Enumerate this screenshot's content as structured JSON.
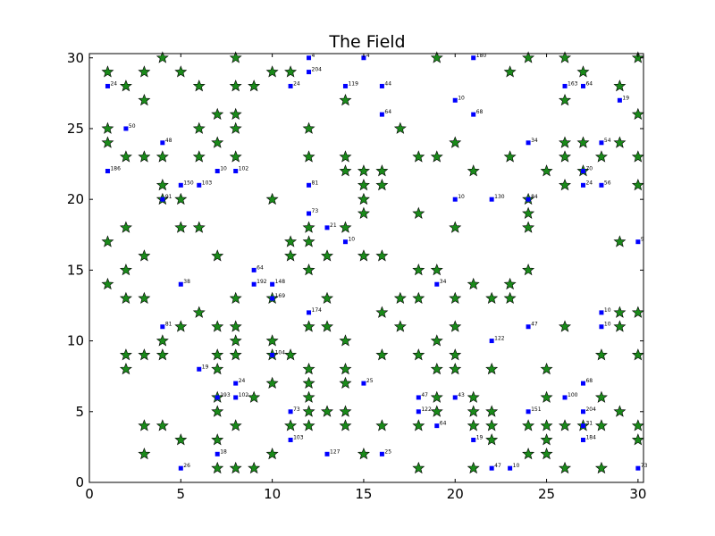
{
  "chart_data": {
    "type": "scatter",
    "title": "The Field",
    "xlabel": "",
    "ylabel": "",
    "xlim": [
      0,
      30.3
    ],
    "ylim": [
      0,
      30.3
    ],
    "xticks": [
      0,
      5,
      10,
      15,
      20,
      25,
      30
    ],
    "yticks": [
      0,
      5,
      10,
      15,
      20,
      25,
      30
    ],
    "grid": false,
    "colors": {
      "star_fill": "#1a8a1a",
      "star_edge": "#000000",
      "square": "#0000ff"
    },
    "series": [
      {
        "marker": "star",
        "points": [
          {
            "x": 1,
            "y": 29
          },
          {
            "x": 3,
            "y": 29
          },
          {
            "x": 4,
            "y": 30
          },
          {
            "x": 5,
            "y": 29
          },
          {
            "x": 8,
            "y": 30
          },
          {
            "x": 10,
            "y": 29
          },
          {
            "x": 11,
            "y": 29
          },
          {
            "x": 2,
            "y": 28
          },
          {
            "x": 6,
            "y": 28
          },
          {
            "x": 8,
            "y": 28
          },
          {
            "x": 9,
            "y": 28
          },
          {
            "x": 3,
            "y": 27
          },
          {
            "x": 14,
            "y": 27
          },
          {
            "x": 19,
            "y": 30
          },
          {
            "x": 23,
            "y": 29
          },
          {
            "x": 24,
            "y": 30
          },
          {
            "x": 26,
            "y": 30
          },
          {
            "x": 27,
            "y": 29
          },
          {
            "x": 29,
            "y": 28
          },
          {
            "x": 30,
            "y": 30
          },
          {
            "x": 26,
            "y": 27
          },
          {
            "x": 30,
            "y": 26
          },
          {
            "x": 7,
            "y": 26
          },
          {
            "x": 8,
            "y": 26
          },
          {
            "x": 1,
            "y": 25
          },
          {
            "x": 6,
            "y": 25
          },
          {
            "x": 8,
            "y": 25
          },
          {
            "x": 12,
            "y": 25
          },
          {
            "x": 17,
            "y": 25
          },
          {
            "x": 1,
            "y": 24
          },
          {
            "x": 7,
            "y": 24
          },
          {
            "x": 20,
            "y": 24
          },
          {
            "x": 26,
            "y": 24
          },
          {
            "x": 27,
            "y": 24
          },
          {
            "x": 29,
            "y": 24
          },
          {
            "x": 2,
            "y": 23
          },
          {
            "x": 3,
            "y": 23
          },
          {
            "x": 4,
            "y": 23
          },
          {
            "x": 6,
            "y": 23
          },
          {
            "x": 8,
            "y": 23
          },
          {
            "x": 12,
            "y": 23
          },
          {
            "x": 14,
            "y": 23
          },
          {
            "x": 18,
            "y": 23
          },
          {
            "x": 19,
            "y": 23
          },
          {
            "x": 23,
            "y": 23
          },
          {
            "x": 26,
            "y": 23
          },
          {
            "x": 28,
            "y": 23
          },
          {
            "x": 30,
            "y": 23
          },
          {
            "x": 14,
            "y": 22
          },
          {
            "x": 15,
            "y": 22
          },
          {
            "x": 16,
            "y": 22
          },
          {
            "x": 21,
            "y": 22
          },
          {
            "x": 25,
            "y": 22
          },
          {
            "x": 27,
            "y": 22
          },
          {
            "x": 4,
            "y": 21
          },
          {
            "x": 15,
            "y": 21
          },
          {
            "x": 16,
            "y": 21
          },
          {
            "x": 26,
            "y": 21
          },
          {
            "x": 30,
            "y": 21
          },
          {
            "x": 4,
            "y": 20
          },
          {
            "x": 5,
            "y": 20
          },
          {
            "x": 10,
            "y": 20
          },
          {
            "x": 15,
            "y": 20
          },
          {
            "x": 24,
            "y": 20
          },
          {
            "x": 15,
            "y": 19
          },
          {
            "x": 18,
            "y": 19
          },
          {
            "x": 24,
            "y": 19
          },
          {
            "x": 2,
            "y": 18
          },
          {
            "x": 5,
            "y": 18
          },
          {
            "x": 6,
            "y": 18
          },
          {
            "x": 12,
            "y": 18
          },
          {
            "x": 14,
            "y": 18
          },
          {
            "x": 20,
            "y": 18
          },
          {
            "x": 24,
            "y": 18
          },
          {
            "x": 1,
            "y": 17
          },
          {
            "x": 11,
            "y": 17
          },
          {
            "x": 12,
            "y": 17
          },
          {
            "x": 29,
            "y": 17
          },
          {
            "x": 3,
            "y": 16
          },
          {
            "x": 7,
            "y": 16
          },
          {
            "x": 11,
            "y": 16
          },
          {
            "x": 13,
            "y": 16
          },
          {
            "x": 15,
            "y": 16
          },
          {
            "x": 16,
            "y": 16
          },
          {
            "x": 2,
            "y": 15
          },
          {
            "x": 12,
            "y": 15
          },
          {
            "x": 18,
            "y": 15
          },
          {
            "x": 19,
            "y": 15
          },
          {
            "x": 24,
            "y": 15
          },
          {
            "x": 1,
            "y": 14
          },
          {
            "x": 21,
            "y": 14
          },
          {
            "x": 23,
            "y": 14
          },
          {
            "x": 2,
            "y": 13
          },
          {
            "x": 3,
            "y": 13
          },
          {
            "x": 8,
            "y": 13
          },
          {
            "x": 10,
            "y": 13
          },
          {
            "x": 13,
            "y": 13
          },
          {
            "x": 17,
            "y": 13
          },
          {
            "x": 18,
            "y": 13
          },
          {
            "x": 20,
            "y": 13
          },
          {
            "x": 22,
            "y": 13
          },
          {
            "x": 23,
            "y": 13
          },
          {
            "x": 6,
            "y": 12
          },
          {
            "x": 16,
            "y": 12
          },
          {
            "x": 29,
            "y": 12
          },
          {
            "x": 30,
            "y": 12
          },
          {
            "x": 5,
            "y": 11
          },
          {
            "x": 7,
            "y": 11
          },
          {
            "x": 8,
            "y": 11
          },
          {
            "x": 12,
            "y": 11
          },
          {
            "x": 13,
            "y": 11
          },
          {
            "x": 17,
            "y": 11
          },
          {
            "x": 20,
            "y": 11
          },
          {
            "x": 26,
            "y": 11
          },
          {
            "x": 29,
            "y": 11
          },
          {
            "x": 4,
            "y": 10
          },
          {
            "x": 8,
            "y": 10
          },
          {
            "x": 10,
            "y": 10
          },
          {
            "x": 14,
            "y": 10
          },
          {
            "x": 19,
            "y": 10
          },
          {
            "x": 2,
            "y": 9
          },
          {
            "x": 3,
            "y": 9
          },
          {
            "x": 4,
            "y": 9
          },
          {
            "x": 7,
            "y": 9
          },
          {
            "x": 8,
            "y": 9
          },
          {
            "x": 10,
            "y": 9
          },
          {
            "x": 11,
            "y": 9
          },
          {
            "x": 16,
            "y": 9
          },
          {
            "x": 18,
            "y": 9
          },
          {
            "x": 20,
            "y": 9
          },
          {
            "x": 28,
            "y": 9
          },
          {
            "x": 30,
            "y": 9
          },
          {
            "x": 2,
            "y": 8
          },
          {
            "x": 7,
            "y": 8
          },
          {
            "x": 12,
            "y": 8
          },
          {
            "x": 14,
            "y": 8
          },
          {
            "x": 19,
            "y": 8
          },
          {
            "x": 20,
            "y": 8
          },
          {
            "x": 22,
            "y": 8
          },
          {
            "x": 25,
            "y": 8
          },
          {
            "x": 10,
            "y": 7
          },
          {
            "x": 12,
            "y": 7
          },
          {
            "x": 14,
            "y": 7
          },
          {
            "x": 7,
            "y": 6
          },
          {
            "x": 9,
            "y": 6
          },
          {
            "x": 12,
            "y": 6
          },
          {
            "x": 19,
            "y": 6
          },
          {
            "x": 21,
            "y": 6
          },
          {
            "x": 25,
            "y": 6
          },
          {
            "x": 28,
            "y": 6
          },
          {
            "x": 7,
            "y": 5
          },
          {
            "x": 12,
            "y": 5
          },
          {
            "x": 13,
            "y": 5
          },
          {
            "x": 14,
            "y": 5
          },
          {
            "x": 19,
            "y": 5
          },
          {
            "x": 21,
            "y": 5
          },
          {
            "x": 22,
            "y": 5
          },
          {
            "x": 29,
            "y": 5
          },
          {
            "x": 3,
            "y": 4
          },
          {
            "x": 4,
            "y": 4
          },
          {
            "x": 8,
            "y": 4
          },
          {
            "x": 11,
            "y": 4
          },
          {
            "x": 12,
            "y": 4
          },
          {
            "x": 14,
            "y": 4
          },
          {
            "x": 16,
            "y": 4
          },
          {
            "x": 18,
            "y": 4
          },
          {
            "x": 21,
            "y": 4
          },
          {
            "x": 22,
            "y": 4
          },
          {
            "x": 24,
            "y": 4
          },
          {
            "x": 25,
            "y": 4
          },
          {
            "x": 26,
            "y": 4
          },
          {
            "x": 27,
            "y": 4
          },
          {
            "x": 28,
            "y": 4
          },
          {
            "x": 30,
            "y": 4
          },
          {
            "x": 5,
            "y": 3
          },
          {
            "x": 7,
            "y": 3
          },
          {
            "x": 22,
            "y": 3
          },
          {
            "x": 25,
            "y": 3
          },
          {
            "x": 30,
            "y": 3
          },
          {
            "x": 3,
            "y": 2
          },
          {
            "x": 10,
            "y": 2
          },
          {
            "x": 15,
            "y": 2
          },
          {
            "x": 24,
            "y": 2
          },
          {
            "x": 25,
            "y": 2
          },
          {
            "x": 7,
            "y": 1
          },
          {
            "x": 8,
            "y": 1
          },
          {
            "x": 9,
            "y": 1
          },
          {
            "x": 18,
            "y": 1
          },
          {
            "x": 21,
            "y": 1
          },
          {
            "x": 26,
            "y": 1
          },
          {
            "x": 28,
            "y": 1
          }
        ]
      },
      {
        "marker": "square",
        "points": [
          {
            "x": 12,
            "y": 30,
            "label": "4"
          },
          {
            "x": 15,
            "y": 30,
            "label": "4"
          },
          {
            "x": 21,
            "y": 30,
            "label": "180"
          },
          {
            "x": 12,
            "y": 29,
            "label": "204"
          },
          {
            "x": 1,
            "y": 28,
            "label": "24"
          },
          {
            "x": 11,
            "y": 28,
            "label": "24"
          },
          {
            "x": 14,
            "y": 28,
            "label": "119"
          },
          {
            "x": 16,
            "y": 28,
            "label": "44"
          },
          {
            "x": 26,
            "y": 28,
            "label": "163"
          },
          {
            "x": 27,
            "y": 28,
            "label": "64"
          },
          {
            "x": 20,
            "y": 27,
            "label": "10"
          },
          {
            "x": 29,
            "y": 27,
            "label": "19"
          },
          {
            "x": 16,
            "y": 26,
            "label": "64"
          },
          {
            "x": 21,
            "y": 26,
            "label": "68"
          },
          {
            "x": 2,
            "y": 25,
            "label": "50"
          },
          {
            "x": 4,
            "y": 24,
            "label": "48"
          },
          {
            "x": 24,
            "y": 24,
            "label": "34"
          },
          {
            "x": 28,
            "y": 24,
            "label": "54"
          },
          {
            "x": 1,
            "y": 22,
            "label": "186"
          },
          {
            "x": 7,
            "y": 22,
            "label": "10"
          },
          {
            "x": 8,
            "y": 22,
            "label": "102"
          },
          {
            "x": 27,
            "y": 22,
            "label": "70"
          },
          {
            "x": 5,
            "y": 21,
            "label": "150"
          },
          {
            "x": 6,
            "y": 21,
            "label": "103"
          },
          {
            "x": 12,
            "y": 21,
            "label": "81"
          },
          {
            "x": 27,
            "y": 21,
            "label": "24"
          },
          {
            "x": 28,
            "y": 21,
            "label": "56"
          },
          {
            "x": 4,
            "y": 20,
            "label": "91"
          },
          {
            "x": 20,
            "y": 20,
            "label": "10"
          },
          {
            "x": 22,
            "y": 20,
            "label": "130"
          },
          {
            "x": 24,
            "y": 20,
            "label": "84"
          },
          {
            "x": 12,
            "y": 19,
            "label": "73"
          },
          {
            "x": 13,
            "y": 18,
            "label": "21"
          },
          {
            "x": 14,
            "y": 17,
            "label": "10"
          },
          {
            "x": 30,
            "y": 17,
            "label": "9"
          },
          {
            "x": 9,
            "y": 15,
            "label": "64"
          },
          {
            "x": 5,
            "y": 14,
            "label": "38"
          },
          {
            "x": 9,
            "y": 14,
            "label": "192"
          },
          {
            "x": 10,
            "y": 14,
            "label": "148"
          },
          {
            "x": 19,
            "y": 14,
            "label": "34"
          },
          {
            "x": 10,
            "y": 13,
            "label": "169"
          },
          {
            "x": 12,
            "y": 12,
            "label": "174"
          },
          {
            "x": 28,
            "y": 12,
            "label": "10"
          },
          {
            "x": 4,
            "y": 11,
            "label": "81"
          },
          {
            "x": 24,
            "y": 11,
            "label": "47"
          },
          {
            "x": 28,
            "y": 11,
            "label": "10"
          },
          {
            "x": 22,
            "y": 10,
            "label": "122"
          },
          {
            "x": 10,
            "y": 9,
            "label": "104"
          },
          {
            "x": 6,
            "y": 8,
            "label": "19"
          },
          {
            "x": 8,
            "y": 7,
            "label": "24"
          },
          {
            "x": 15,
            "y": 7,
            "label": "25"
          },
          {
            "x": 27,
            "y": 7,
            "label": "68"
          },
          {
            "x": 7,
            "y": 6,
            "label": "193"
          },
          {
            "x": 8,
            "y": 6,
            "label": "102"
          },
          {
            "x": 18,
            "y": 6,
            "label": "47"
          },
          {
            "x": 20,
            "y": 6,
            "label": "43"
          },
          {
            "x": 26,
            "y": 6,
            "label": "100"
          },
          {
            "x": 11,
            "y": 5,
            "label": "73"
          },
          {
            "x": 18,
            "y": 5,
            "label": "122"
          },
          {
            "x": 24,
            "y": 5,
            "label": "151"
          },
          {
            "x": 27,
            "y": 5,
            "label": "204"
          },
          {
            "x": 19,
            "y": 4,
            "label": "64"
          },
          {
            "x": 27,
            "y": 4,
            "label": "31"
          },
          {
            "x": 11,
            "y": 3,
            "label": "103"
          },
          {
            "x": 21,
            "y": 3,
            "label": "19"
          },
          {
            "x": 27,
            "y": 3,
            "label": "184"
          },
          {
            "x": 7,
            "y": 2,
            "label": "18"
          },
          {
            "x": 13,
            "y": 2,
            "label": "127"
          },
          {
            "x": 16,
            "y": 2,
            "label": "25"
          },
          {
            "x": 5,
            "y": 1,
            "label": "26"
          },
          {
            "x": 22,
            "y": 1,
            "label": "47"
          },
          {
            "x": 23,
            "y": 1,
            "label": "10"
          },
          {
            "x": 30,
            "y": 1,
            "label": "73"
          }
        ]
      }
    ]
  }
}
